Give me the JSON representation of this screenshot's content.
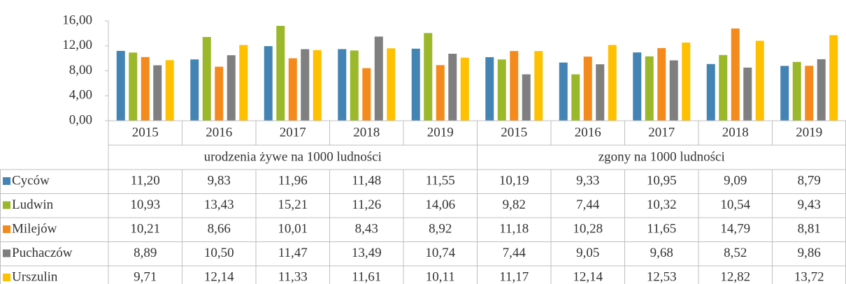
{
  "chart_data": {
    "type": "bar",
    "groups": [
      {
        "name": "urodzenia żywe na 1000 ludności",
        "categories": [
          "2015",
          "2016",
          "2017",
          "2018",
          "2019"
        ]
      },
      {
        "name": "zgony na 1000 ludności",
        "categories": [
          "2015",
          "2016",
          "2017",
          "2018",
          "2019"
        ]
      }
    ],
    "series": [
      {
        "name": "Cyców",
        "color": "#4384b4",
        "values": [
          11.2,
          9.83,
          11.96,
          11.48,
          11.55,
          10.19,
          9.33,
          10.95,
          9.09,
          8.79
        ],
        "value_labels": [
          "11,20",
          "9,83",
          "11,96",
          "11,48",
          "11,55",
          "10,19",
          "9,33",
          "10,95",
          "9,09",
          "8,79"
        ]
      },
      {
        "name": "Ludwin",
        "color": "#9bb82a",
        "values": [
          10.93,
          13.43,
          15.21,
          11.26,
          14.06,
          9.82,
          7.44,
          10.32,
          10.54,
          9.43
        ],
        "value_labels": [
          "10,93",
          "13,43",
          "15,21",
          "11,26",
          "14,06",
          "9,82",
          "7,44",
          "10,32",
          "10,54",
          "9,43"
        ]
      },
      {
        "name": "Milejów",
        "color": "#f58a1c",
        "values": [
          10.21,
          8.66,
          10.01,
          8.43,
          8.92,
          11.18,
          10.28,
          11.65,
          14.79,
          8.81
        ],
        "value_labels": [
          "10,21",
          "8,66",
          "10,01",
          "8,43",
          "8,92",
          "11,18",
          "10,28",
          "11,65",
          "14,79",
          "8,81"
        ]
      },
      {
        "name": "Puchaczów",
        "color": "#7f7f7f",
        "values": [
          8.89,
          10.5,
          11.47,
          13.49,
          10.74,
          7.44,
          9.05,
          9.68,
          8.52,
          9.86
        ],
        "value_labels": [
          "8,89",
          "10,50",
          "11,47",
          "13,49",
          "10,74",
          "7,44",
          "9,05",
          "9,68",
          "8,52",
          "9,86"
        ]
      },
      {
        "name": "Urszulin",
        "color": "#ffc000",
        "values": [
          9.71,
          12.14,
          11.33,
          11.61,
          10.11,
          11.17,
          12.14,
          12.53,
          12.82,
          13.72
        ],
        "value_labels": [
          "9,71",
          "12,14",
          "11,33",
          "11,61",
          "10,11",
          "11,17",
          "12,14",
          "12,53",
          "12,82",
          "13,72"
        ]
      }
    ],
    "ylim": [
      0,
      16
    ],
    "yticks": [
      {
        "value": 0,
        "label": "0,00"
      },
      {
        "value": 4,
        "label": "4,00"
      },
      {
        "value": 8,
        "label": "8,00"
      },
      {
        "value": 12,
        "label": "12,00"
      },
      {
        "value": 16,
        "label": "16,00"
      }
    ],
    "grid": false
  }
}
